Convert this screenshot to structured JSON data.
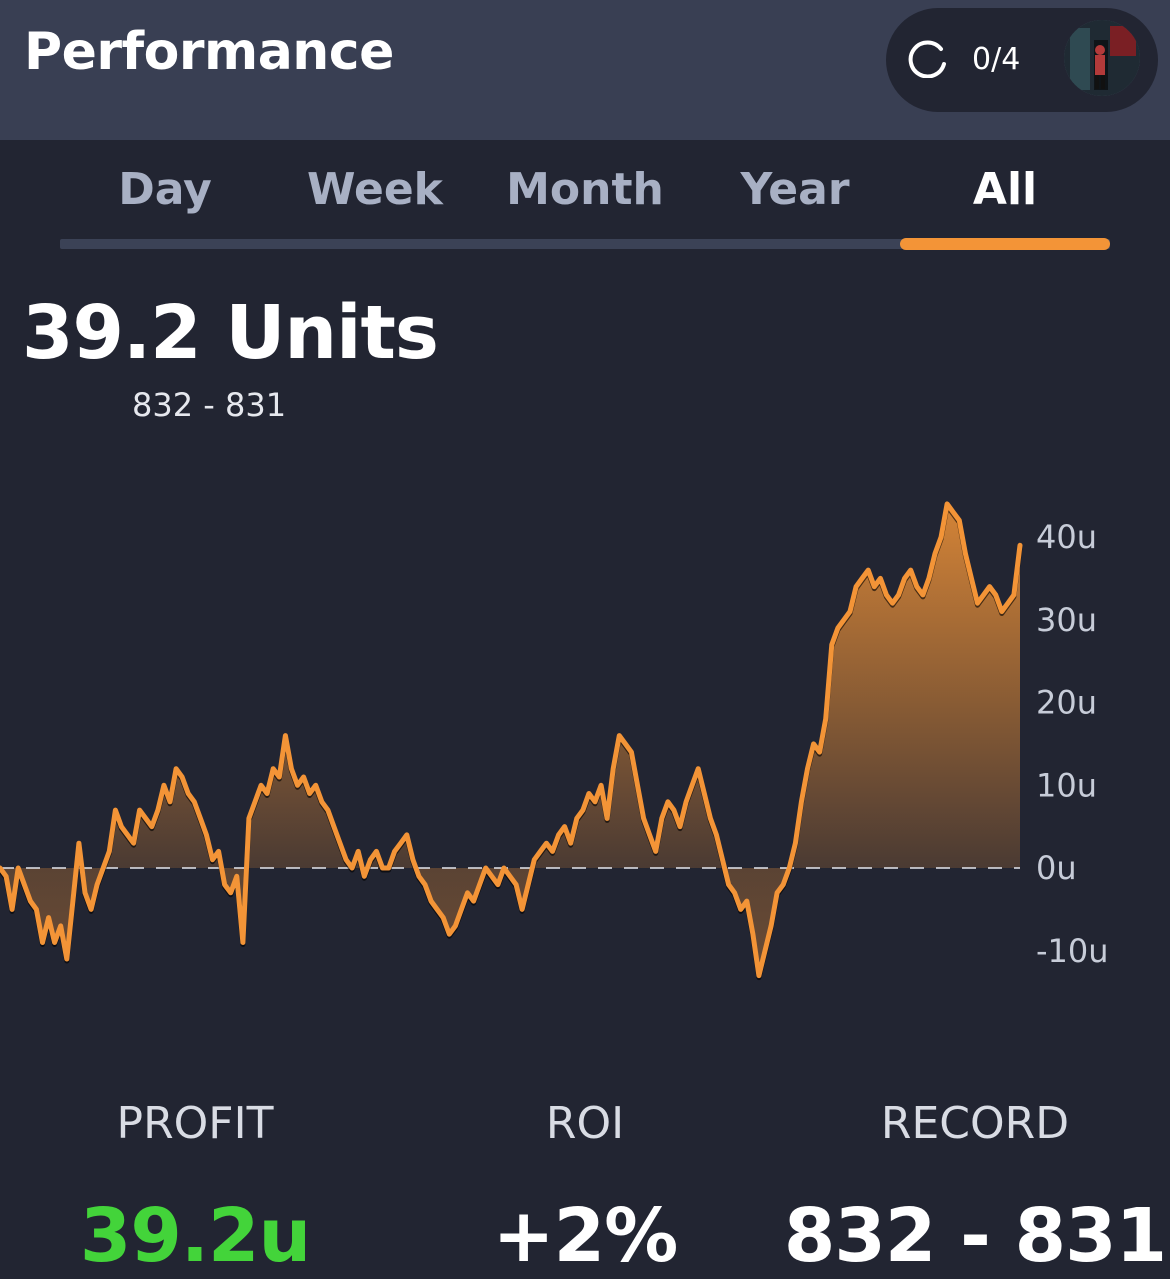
{
  "header": {
    "title": "Performance",
    "progress_count": "0/4",
    "icons": {
      "spinner": "loading-ring-icon",
      "avatar": "user-avatar"
    }
  },
  "tabs": [
    {
      "label": "Day",
      "active": false
    },
    {
      "label": "Week",
      "active": false
    },
    {
      "label": "Month",
      "active": false
    },
    {
      "label": "Year",
      "active": false
    },
    {
      "label": "All",
      "active": true
    }
  ],
  "summary": {
    "headline": "39.2 Units",
    "record": "832 - 831"
  },
  "chart_data": {
    "type": "area",
    "ylim": [
      -15,
      45
    ],
    "yticks": [
      40,
      30,
      20,
      10,
      0,
      -10
    ],
    "ytick_labels": [
      "40u",
      "30u",
      "20u",
      "10u",
      "0u",
      "-10u"
    ],
    "baseline": 0,
    "line_color": "#f39437",
    "grid": false,
    "y": [
      0,
      -1,
      -5,
      0,
      -2,
      -4,
      -5,
      -9,
      -6,
      -9,
      -7,
      -11,
      -4,
      3,
      -3,
      -5,
      -2,
      0,
      2,
      7,
      5,
      4,
      3,
      7,
      6,
      5,
      7,
      10,
      8,
      12,
      11,
      9,
      8,
      6,
      4,
      1,
      2,
      -2,
      -3,
      -1,
      -9,
      6,
      8,
      10,
      9,
      12,
      11,
      16,
      12,
      10,
      11,
      9,
      10,
      8,
      7,
      5,
      3,
      1,
      0,
      2,
      -1,
      1,
      2,
      0,
      0,
      2,
      3,
      4,
      1,
      -1,
      -2,
      -4,
      -5,
      -6,
      -8,
      -7,
      -5,
      -3,
      -4,
      -2,
      0,
      -1,
      -2,
      0,
      -1,
      -2,
      -5,
      -2,
      1,
      2,
      3,
      2,
      4,
      5,
      3,
      6,
      7,
      9,
      8,
      10,
      6,
      12,
      16,
      15,
      14,
      10,
      6,
      4,
      2,
      6,
      8,
      7,
      5,
      8,
      10,
      12,
      9,
      6,
      4,
      1,
      -2,
      -3,
      -5,
      -4,
      -8,
      -13,
      -10,
      -7,
      -3,
      -2,
      0,
      3,
      8,
      12,
      15,
      14,
      18,
      27,
      29,
      30,
      31,
      34,
      35,
      36,
      34,
      35,
      33,
      32,
      33,
      35,
      36,
      34,
      33,
      35,
      38,
      40,
      44,
      43,
      42,
      38,
      35,
      32,
      33,
      34,
      33,
      31,
      32,
      33,
      39
    ]
  },
  "stats": [
    {
      "label": "PROFIT",
      "value": "39.2u",
      "color": "#43d43a"
    },
    {
      "label": "ROI",
      "value": "+2%",
      "color": "#ffffff"
    },
    {
      "label": "RECORD",
      "value": "832 - 831",
      "color": "#ffffff"
    }
  ]
}
